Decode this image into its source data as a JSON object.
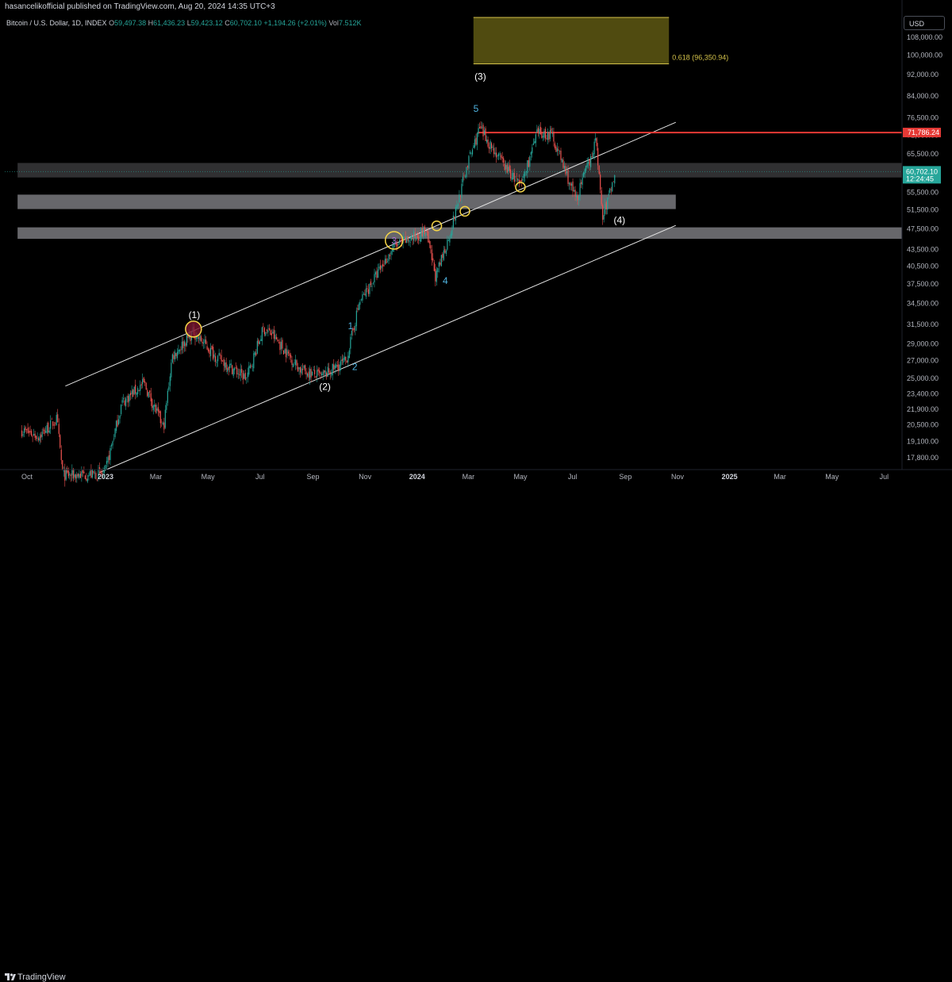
{
  "header": {
    "publisher": "hasancelikofficial published on TradingView.com, Aug 20, 2024 14:35 UTC+3"
  },
  "legend": {
    "symbol": "Bitcoin / U.S. Dollar, 1D, INDEX",
    "open_label": "O",
    "open": "59,497.38",
    "high_label": "H",
    "high": "61,436.23",
    "low_label": "L",
    "low": "59,423.12",
    "close_label": "C",
    "close": "60,702.10",
    "change": "+1,194.26 (+2.01%)",
    "vol_label": "Vol",
    "vol": "7.512K"
  },
  "currency": "USD",
  "footer": {
    "brand": "TradingView"
  },
  "colors": {
    "background": "#000000",
    "up_candle": "#26a69a",
    "down_candle": "#ef5350",
    "resistance_line": "#e53935",
    "fib_zone": "#6b6415",
    "fib_border": "#d4c24a",
    "zone": "#8a8a8f",
    "wave_primary": "#ffffff",
    "wave_minor": "#4fb3e0",
    "circle": "#f5d547"
  },
  "chart_data": {
    "type": "candlestick",
    "symbol": "Bitcoin / U.S. Dollar, 1D, INDEX",
    "price_scale": "log",
    "ylim": [
      16700,
      115000
    ],
    "y_ticks": [
      "108,000.00",
      "100,000.00",
      "92,000.00",
      "84,000.00",
      "76,500.00",
      "71,000.00",
      "65,500.00",
      "60,500.00",
      "55,500.00",
      "51,500.00",
      "47,500.00",
      "43,500.00",
      "40,500.00",
      "37,500.00",
      "34,500.00",
      "31,500.00",
      "29,000.00",
      "27,000.00",
      "25,000.00",
      "23,400.00",
      "21,900.00",
      "20,500.00",
      "19,100.00",
      "17,800.00"
    ],
    "x_ticks": [
      "Oct",
      "2023",
      "Mar",
      "May",
      "Jul",
      "Sep",
      "Nov",
      "2024",
      "Mar",
      "May",
      "Jul",
      "Sep",
      "Nov",
      "2025",
      "Mar",
      "May",
      "Jul"
    ],
    "price_path": [
      [
        "2022-09-25",
        20000
      ],
      [
        "2022-10-15",
        19500
      ],
      [
        "2022-11-05",
        21000
      ],
      [
        "2022-11-12",
        16500
      ],
      [
        "2022-12-31",
        16600
      ],
      [
        "2023-01-20",
        22500
      ],
      [
        "2023-02-15",
        24500
      ],
      [
        "2023-03-10",
        20200
      ],
      [
        "2023-03-20",
        27500
      ],
      [
        "2023-04-14",
        30500
      ],
      [
        "2023-05-10",
        27500
      ],
      [
        "2023-06-15",
        25000
      ],
      [
        "2023-07-05",
        31000
      ],
      [
        "2023-07-15",
        30200
      ],
      [
        "2023-08-17",
        26000
      ],
      [
        "2023-09-11",
        25200
      ],
      [
        "2023-10-10",
        27000
      ],
      [
        "2023-10-25",
        34500
      ],
      [
        "2023-12-05",
        44000
      ],
      [
        "2024-01-11",
        47000
      ],
      [
        "2024-01-23",
        38500
      ],
      [
        "2024-02-10",
        47500
      ],
      [
        "2024-02-28",
        62000
      ],
      [
        "2024-03-14",
        73000
      ],
      [
        "2024-04-13",
        62000
      ],
      [
        "2024-05-01",
        57000
      ],
      [
        "2024-05-21",
        71500
      ],
      [
        "2024-06-07",
        71000
      ],
      [
        "2024-07-05",
        53800
      ],
      [
        "2024-07-29",
        69500
      ],
      [
        "2024-08-05",
        49500
      ],
      [
        "2024-08-20",
        60702
      ]
    ],
    "last_price": "60,702.10",
    "countdown": "12:24:45",
    "resistance": {
      "price": 71786.24,
      "label": "71,786.24"
    },
    "fib_zone": {
      "label": "0.618 (96,350.94)",
      "from": "2024-03-07",
      "to": "2024-10-22",
      "price_low": 96350.94,
      "price_high": 120000
    },
    "zones": [
      {
        "from": "2022-09-20",
        "to": "2025-09-01",
        "price_low": 59200,
        "price_high": 63000
      },
      {
        "from": "2022-09-20",
        "to": "2024-10-30",
        "price_low": 51700,
        "price_high": 55000
      },
      {
        "from": "2022-09-20",
        "to": "2025-09-01",
        "price_low": 45500,
        "price_high": 47800
      }
    ],
    "channel_upper": [
      [
        "2022-11-15",
        24200
      ],
      [
        "2024-10-30",
        75000
      ]
    ],
    "channel_lower": [
      [
        "2022-12-25",
        16700
      ],
      [
        "2024-10-30",
        48200
      ]
    ],
    "dotted_line": 60702,
    "wave_labels": [
      {
        "text": "(1)",
        "date": "2023-04-15",
        "price": 32400,
        "style": "primary"
      },
      {
        "text": "(2)",
        "date": "2023-09-15",
        "price": 23800,
        "style": "primary"
      },
      {
        "text": "(3)",
        "date": "2024-03-15",
        "price": 90000,
        "style": "primary"
      },
      {
        "text": "(4)",
        "date": "2024-08-25",
        "price": 48600,
        "style": "primary"
      },
      {
        "text": "1",
        "date": "2023-10-15",
        "price": 30900,
        "style": "minor"
      },
      {
        "text": "2",
        "date": "2023-10-20",
        "price": 25900,
        "style": "minor"
      },
      {
        "text": "3",
        "date": "2023-12-05",
        "price": 44500,
        "style": "minor"
      },
      {
        "text": "4",
        "date": "2024-02-03",
        "price": 37500,
        "style": "minor"
      },
      {
        "text": "5",
        "date": "2024-03-10",
        "price": 78400,
        "style": "minor"
      }
    ],
    "circles": [
      {
        "date": "2023-04-14",
        "price": 30900,
        "r": 10,
        "fill": true
      },
      {
        "date": "2023-12-05",
        "price": 45200,
        "r": 11,
        "fill": false
      },
      {
        "date": "2024-01-24",
        "price": 48100,
        "r": 6,
        "fill": false
      },
      {
        "date": "2024-02-26",
        "price": 51200,
        "r": 6,
        "fill": false
      },
      {
        "date": "2024-05-01",
        "price": 56800,
        "r": 6,
        "fill": false
      }
    ]
  }
}
